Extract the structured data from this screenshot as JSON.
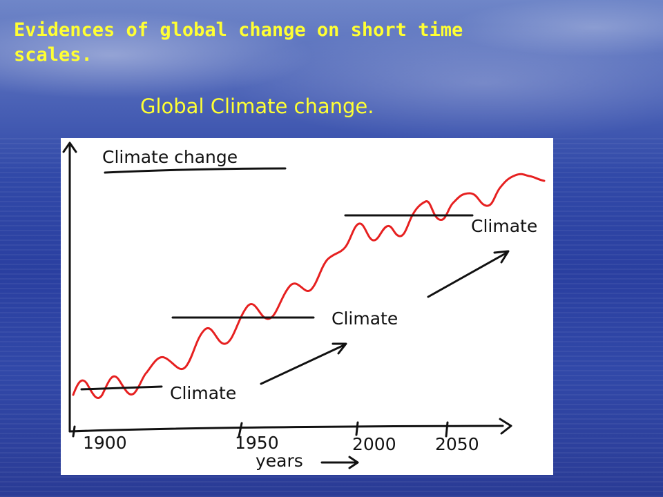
{
  "slide": {
    "title": "Evidences of global change on short time scales.",
    "subtitle": "Global Climate change."
  },
  "sketch": {
    "heading": "Climate change",
    "climate_labels": [
      "Climate",
      "Climate",
      "Climate"
    ],
    "x_ticks": [
      "1900",
      "1950",
      "2000",
      "2050"
    ],
    "x_axis_label": "years"
  }
}
